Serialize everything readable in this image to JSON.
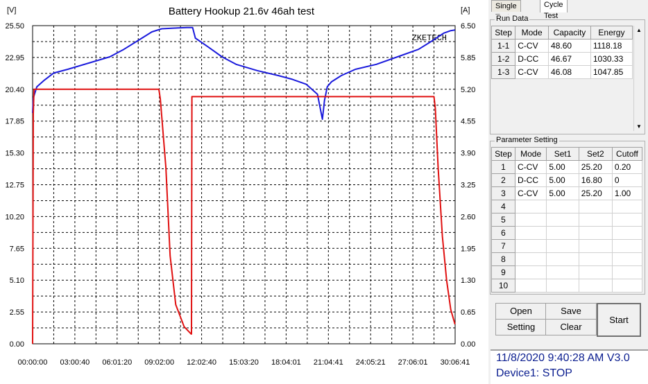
{
  "chart": {
    "title": "Battery Hookup 21.6v 46ah test",
    "left_unit": "[V]",
    "right_unit": "[A]",
    "watermark": "ZKETECH",
    "voltage_color": "#1a1adc",
    "current_color": "#e01010",
    "left_ticks": [
      "25.50",
      "22.95",
      "20.40",
      "17.85",
      "15.30",
      "12.75",
      "10.20",
      "7.65",
      "5.10",
      "2.55",
      "0.00"
    ],
    "right_ticks": [
      "6.50",
      "5.85",
      "5.20",
      "4.55",
      "3.90",
      "3.25",
      "2.60",
      "1.95",
      "1.30",
      "0.65",
      "0.00"
    ],
    "x_ticks": [
      "00:00:00",
      "03:00:40",
      "06:01:20",
      "09:02:00",
      "12:02:40",
      "15:03:20",
      "18:04:01",
      "21:04:41",
      "24:05:21",
      "27:06:01",
      "30:06:41"
    ]
  },
  "chart_data": {
    "type": "line",
    "x_unit": "hours",
    "xlim": [
      0,
      30.11
    ],
    "ylim_left": [
      0,
      25.5
    ],
    "ylim_right": [
      0,
      6.5
    ],
    "grid": true,
    "series": [
      {
        "axis": "left",
        "x": [
          0,
          0.05,
          0.3,
          0.8,
          1.5,
          2.5,
          4,
          5.5,
          6.5,
          7.5,
          8.5,
          9.2,
          10,
          11,
          11.4,
          11.6,
          12.5,
          13.5,
          14.5,
          16,
          17.5,
          18.5,
          19.5,
          20.3,
          20.65,
          20.8,
          21.0,
          21.3,
          22,
          23,
          24.5,
          26,
          27.5,
          28.5,
          29.3,
          29.8,
          30.1
        ],
        "y": [
          18.5,
          19.7,
          20.6,
          21.1,
          21.7,
          22.0,
          22.5,
          23.0,
          23.6,
          24.3,
          25.0,
          25.25,
          25.3,
          25.35,
          25.35,
          24.5,
          23.8,
          23.0,
          22.4,
          21.9,
          21.5,
          21.2,
          20.8,
          20.0,
          18.0,
          19.5,
          20.6,
          21.0,
          21.5,
          22.0,
          22.4,
          23.0,
          23.6,
          24.3,
          24.9,
          25.1,
          25.15
        ]
      },
      {
        "axis": "right",
        "x": [
          0,
          0.05,
          0.1,
          9.0,
          9.1,
          9.5,
          9.8,
          10.2,
          10.8,
          11.3,
          11.32,
          11.35,
          28.6,
          28.7,
          28.9,
          29.2,
          29.5,
          29.8,
          30.1
        ],
        "y": [
          0,
          4.7,
          5.2,
          5.2,
          5.0,
          3.6,
          1.8,
          0.8,
          0.35,
          0.2,
          0.2,
          5.05,
          5.05,
          4.8,
          3.6,
          2.2,
          1.3,
          0.7,
          0.4
        ]
      }
    ]
  },
  "panel": {
    "tab_single": "Single Test",
    "tab_cycle": "Cycle Test",
    "run_data_title": "Run Data",
    "run_cols": [
      "Step",
      "Mode",
      "Capacity",
      "Energy"
    ],
    "run_rows": [
      [
        "1-1",
        "C-CV",
        "48.60",
        "1118.18"
      ],
      [
        "1-2",
        "D-CC",
        "46.67",
        "1030.33"
      ],
      [
        "1-3",
        "C-CV",
        "46.08",
        "1047.85"
      ]
    ],
    "param_title": "Parameter Setting",
    "param_cols": [
      "Step",
      "Mode",
      "Set1",
      "Set2",
      "Cutoff"
    ],
    "param_rows": [
      [
        "1",
        "C-CV",
        "5.00",
        "25.20",
        "0.20"
      ],
      [
        "2",
        "D-CC",
        "5.00",
        "16.80",
        "0"
      ],
      [
        "3",
        "C-CV",
        "5.00",
        "25.20",
        "1.00"
      ],
      [
        "4",
        "",
        "",
        "",
        ""
      ],
      [
        "5",
        "",
        "",
        "",
        ""
      ],
      [
        "6",
        "",
        "",
        "",
        ""
      ],
      [
        "7",
        "",
        "",
        "",
        ""
      ],
      [
        "8",
        "",
        "",
        "",
        ""
      ],
      [
        "9",
        "",
        "",
        "",
        ""
      ],
      [
        "10",
        "",
        "",
        "",
        ""
      ]
    ],
    "btn_open": "Open",
    "btn_save": "Save",
    "btn_setting": "Setting",
    "btn_clear": "Clear",
    "btn_start": "Start"
  },
  "status": {
    "datetime": "11/8/2020 9:40:28 AM  V3.0",
    "device": "Device1: STOP"
  }
}
